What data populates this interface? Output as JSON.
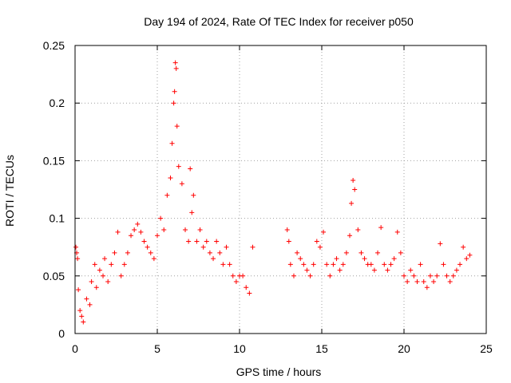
{
  "chart_data": {
    "type": "scatter",
    "title": "Day 194 of 2024, Rate Of TEC Index for receiver p050",
    "xlabel": "GPS time / hours",
    "ylabel": "ROTI / TECUs",
    "xlim": [
      0,
      25
    ],
    "ylim": [
      0,
      0.25
    ],
    "x_ticks": [
      0,
      5,
      10,
      15,
      20,
      25
    ],
    "y_ticks": [
      0,
      0.05,
      0.1,
      0.15,
      0.2,
      0.25
    ],
    "x_tick_labels": [
      "0",
      "5",
      "10",
      "15",
      "20",
      "25"
    ],
    "y_tick_labels": [
      "0",
      "0.05",
      "0.1",
      "0.15",
      "0.2",
      "0.25"
    ],
    "grid": true,
    "marker": "+",
    "series": [
      {
        "name": "ROTI",
        "color": "#ff0000",
        "x": [
          0.05,
          0.1,
          0.15,
          0.2,
          0.3,
          0.4,
          0.5,
          0.7,
          0.9,
          1.0,
          1.2,
          1.3,
          1.5,
          1.7,
          1.8,
          2.0,
          2.2,
          2.4,
          2.6,
          2.8,
          3.0,
          3.2,
          3.4,
          3.6,
          3.8,
          4.0,
          4.2,
          4.4,
          4.6,
          4.8,
          5.0,
          5.2,
          5.4,
          5.6,
          5.8,
          5.9,
          6.0,
          6.05,
          6.1,
          6.15,
          6.2,
          6.3,
          6.5,
          6.7,
          6.9,
          7.0,
          7.1,
          7.2,
          7.4,
          7.6,
          7.8,
          8.0,
          8.2,
          8.4,
          8.6,
          8.8,
          9.0,
          9.2,
          9.4,
          9.6,
          9.8,
          10.0,
          10.2,
          10.4,
          10.6,
          10.8,
          12.9,
          13.0,
          13.1,
          13.3,
          13.5,
          13.7,
          13.9,
          14.1,
          14.3,
          14.5,
          14.7,
          14.9,
          15.1,
          15.3,
          15.5,
          15.7,
          15.9,
          16.1,
          16.3,
          16.5,
          16.7,
          16.8,
          16.9,
          17.0,
          17.2,
          17.4,
          17.6,
          17.8,
          18.0,
          18.2,
          18.4,
          18.6,
          18.8,
          19.0,
          19.2,
          19.4,
          19.6,
          19.8,
          20.0,
          20.2,
          20.4,
          20.6,
          20.8,
          21.0,
          21.2,
          21.4,
          21.6,
          21.8,
          22.0,
          22.2,
          22.4,
          22.6,
          22.8,
          23.0,
          23.2,
          23.4,
          23.6,
          23.8,
          24.0
        ],
        "y": [
          0.075,
          0.07,
          0.065,
          0.038,
          0.02,
          0.015,
          0.01,
          0.03,
          0.025,
          0.045,
          0.06,
          0.04,
          0.055,
          0.05,
          0.065,
          0.045,
          0.06,
          0.07,
          0.088,
          0.05,
          0.06,
          0.07,
          0.085,
          0.09,
          0.095,
          0.088,
          0.08,
          0.075,
          0.07,
          0.065,
          0.085,
          0.1,
          0.09,
          0.12,
          0.135,
          0.165,
          0.2,
          0.21,
          0.235,
          0.23,
          0.18,
          0.145,
          0.13,
          0.09,
          0.08,
          0.143,
          0.105,
          0.12,
          0.08,
          0.09,
          0.075,
          0.08,
          0.07,
          0.065,
          0.08,
          0.07,
          0.06,
          0.075,
          0.06,
          0.05,
          0.045,
          0.05,
          0.05,
          0.04,
          0.035,
          0.075,
          0.09,
          0.08,
          0.06,
          0.05,
          0.07,
          0.065,
          0.06,
          0.055,
          0.05,
          0.06,
          0.08,
          0.075,
          0.088,
          0.06,
          0.05,
          0.06,
          0.065,
          0.055,
          0.06,
          0.07,
          0.085,
          0.113,
          0.133,
          0.125,
          0.09,
          0.07,
          0.065,
          0.06,
          0.06,
          0.055,
          0.07,
          0.092,
          0.06,
          0.055,
          0.06,
          0.065,
          0.088,
          0.07,
          0.05,
          0.045,
          0.055,
          0.05,
          0.045,
          0.06,
          0.045,
          0.04,
          0.05,
          0.045,
          0.05,
          0.078,
          0.06,
          0.05,
          0.045,
          0.05,
          0.055,
          0.06,
          0.075,
          0.065,
          0.068
        ]
      }
    ]
  }
}
